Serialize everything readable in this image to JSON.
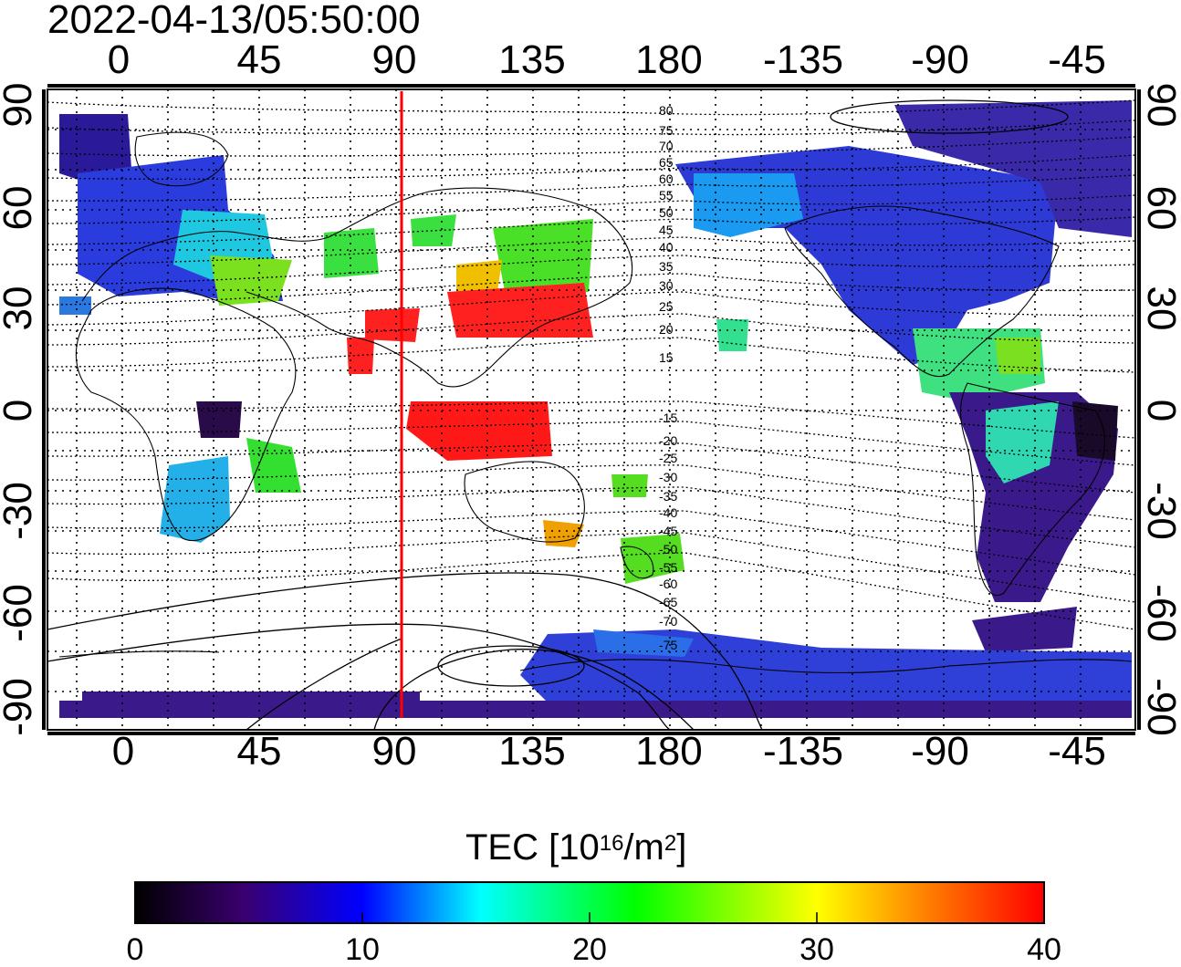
{
  "title": "2022-04-13/05:50:00",
  "map": {
    "top_axis_labels": [
      "0",
      "45",
      "90",
      "135",
      "180",
      "-135",
      "-90",
      "-45"
    ],
    "bottom_axis_labels": [
      "0",
      "45",
      "90",
      "135",
      "180",
      "-135",
      "-90",
      "-45"
    ],
    "left_axis_labels": [
      "90",
      "60",
      "30",
      "0",
      "-30",
      "-60",
      "-90"
    ],
    "right_axis_labels": [
      "90",
      "60",
      "30",
      "0",
      "-30",
      "-60",
      "-90"
    ],
    "contour_labels": [
      "80",
      "75",
      "70",
      "65",
      "60",
      "55",
      "50",
      "45",
      "40",
      "35",
      "30",
      "25",
      "20",
      "15",
      "-15",
      "-20",
      "-25",
      "-30",
      "-35",
      "-40",
      "-45",
      "-50",
      "-55",
      "-60",
      "-65",
      "-70",
      "-75"
    ],
    "marker_line_color": "#ff0000",
    "marker_longitude": 92
  },
  "colorbar": {
    "title_pre": "TEC  [10",
    "title_sup1": "16",
    "title_mid": "/m",
    "title_sup2": "2",
    "title_post": "]",
    "ticks": [
      "0",
      "10",
      "20",
      "30",
      "40"
    ],
    "colors": [
      "#000000",
      "#3a0070",
      "#0000ff",
      "#00ffff",
      "#00ff00",
      "#ffff00",
      "#ff8000",
      "#ff0000"
    ]
  }
}
